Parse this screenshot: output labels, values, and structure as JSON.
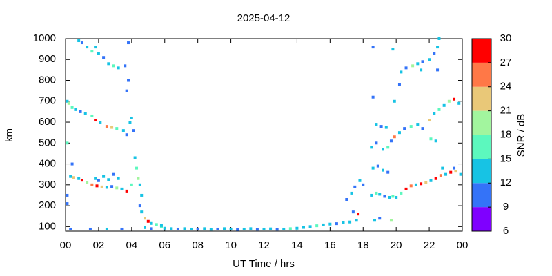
{
  "chart_data": {
    "type": "scatter",
    "title": "2025-04-12",
    "xlabel": "UT Time / hrs",
    "ylabel": "km",
    "xlim": [
      0,
      24
    ],
    "xticks": [
      {
        "value": 0,
        "label": "00"
      },
      {
        "value": 2,
        "label": "02"
      },
      {
        "value": 4,
        "label": "04"
      },
      {
        "value": 6,
        "label": "06"
      },
      {
        "value": 8,
        "label": "08"
      },
      10,
      12,
      14,
      16,
      18,
      20,
      22,
      {
        "value": 24,
        "label": "00"
      }
    ],
    "ylim": [
      78,
      1000
    ],
    "yticks": [
      100,
      200,
      300,
      400,
      500,
      600,
      700,
      800,
      900,
      1000
    ],
    "colorbar": {
      "label": "SNR / dB",
      "lim": [
        6,
        30
      ],
      "ticks": [
        6,
        9,
        12,
        15,
        18,
        21,
        24,
        27,
        30
      ],
      "colors": [
        "#7f00ff",
        "#3473f8",
        "#17c3e4",
        "#5cf8be",
        "#a2f59e",
        "#e9c878",
        "#ff7847",
        "#ff0000"
      ]
    },
    "series": [
      {
        "x": [
          5.8,
          6.0,
          6.4,
          6.8,
          7.2,
          7.6,
          8.0,
          8.4,
          8.8,
          9.2,
          9.6,
          10.0,
          10.4,
          10.8,
          11.2,
          11.6,
          12.0,
          12.4,
          12.8,
          13.2,
          13.6,
          14.0,
          14.4,
          14.8,
          15.2,
          15.6,
          16.0,
          16.4,
          16.8,
          17.2,
          0.3,
          1.5,
          2.5,
          3.4,
          4.8,
          5.2,
          0.3,
          0.5,
          0.8,
          1.0,
          1.3,
          1.6,
          1.9,
          2.2,
          2.5,
          2.8,
          3.1,
          3.4,
          3.7,
          1.8,
          2.0,
          2.3,
          2.6,
          2.9,
          3.2,
          0.1,
          0.1,
          0.4,
          0.1,
          0.2,
          0.4,
          0.6,
          0.9,
          1.2,
          1.6,
          1.8,
          2.1,
          2.5,
          2.8,
          3.1,
          3.5,
          3.7,
          3.9,
          0.1,
          0.8,
          1.0,
          1.3,
          1.6,
          2.0,
          2.3,
          2.6,
          2.9,
          3.2,
          3.6,
          3.8,
          1.8,
          3.8,
          3.7,
          4.0,
          4.1,
          4.2,
          4.3,
          4.4,
          4.5,
          4.6,
          4.5,
          4.6,
          4.8,
          5.0,
          5.2,
          5.5,
          5.8,
          4.0,
          17.0,
          17.3,
          17.5,
          17.7,
          17.6,
          17.4,
          17.8,
          18.0,
          18.5,
          18.8,
          19.0,
          19.3,
          19.6,
          19.8,
          18.6,
          18.9,
          19.2,
          19.5,
          18.5,
          18.8,
          19.2,
          19.5,
          19.7,
          19.9,
          18.8,
          19.1,
          19.4,
          18.6,
          19.9,
          18.6,
          19.8,
          18.7,
          19.0,
          19.7,
          20.0,
          20.3,
          20.6,
          20.9,
          21.2,
          21.5,
          21.8,
          22.1,
          22.4,
          22.7,
          23.0,
          23.3,
          23.6,
          23.9,
          23.5,
          22.8,
          20.2,
          20.5,
          20.9,
          21.3,
          21.6,
          22.0,
          22.3,
          22.6,
          22.9,
          23.2,
          23.5,
          23.8,
          22.1,
          22.4,
          20.2,
          20.3,
          20.6,
          21.0,
          21.3,
          21.6,
          22.0,
          22.3,
          22.5,
          22.6,
          21.5,
          22.5
        ],
        "values": [
          100,
          92,
          90,
          88,
          90,
          88,
          88,
          90,
          87,
          88,
          90,
          88,
          86,
          88,
          90,
          87,
          88,
          89,
          87,
          88,
          90,
          92,
          96,
          100,
          104,
          108,
          112,
          114,
          118,
          122,
          88,
          88,
          88,
          88,
          95,
          90,
          340,
          335,
          330,
          322,
          310,
          300,
          295,
          290,
          288,
          292,
          285,
          280,
          270,
          330,
          320,
          340,
          325,
          350,
          330,
          250,
          210,
          400,
          700,
          690,
          670,
          660,
          650,
          640,
          630,
          610,
          600,
          580,
          575,
          570,
          560,
          540,
          600,
          500,
          990,
          980,
          960,
          940,
          930,
          910,
          880,
          870,
          860,
          870,
          980,
          960,
          800,
          750,
          620,
          560,
          430,
          380,
          330,
          300,
          250,
          200,
          170,
          140,
          125,
          115,
          110,
          105,
          300,
          230,
          260,
          290,
          160,
          130,
          170,
          320,
          300,
          250,
          260,
          255,
          245,
          240,
          245,
          380,
          390,
          370,
          360,
          480,
          500,
          470,
          480,
          510,
          530,
          590,
          580,
          575,
          720,
          700,
          960,
          950,
          130,
          140,
          130,
          240,
          260,
          280,
          295,
          300,
          305,
          310,
          320,
          330,
          345,
          350,
          360,
          365,
          350,
          380,
          380,
          550,
          570,
          580,
          590,
          570,
          610,
          640,
          660,
          680,
          700,
          710,
          690,
          520,
          510,
          780,
          840,
          860,
          870,
          880,
          890,
          900,
          930,
          960,
          1000,
          850,
          850
        ],
        "snr": [
          15,
          12,
          12,
          9,
          12,
          12,
          9,
          12,
          12,
          9,
          12,
          12,
          9,
          12,
          12,
          9,
          12,
          12,
          9,
          12,
          15,
          12,
          12,
          12,
          15,
          12,
          12,
          9,
          12,
          12,
          9,
          9,
          12,
          9,
          12,
          9,
          12,
          21,
          12,
          27,
          18,
          24,
          27,
          21,
          12,
          9,
          18,
          12,
          27,
          12,
          9,
          12,
          12,
          9,
          12,
          9,
          9,
          9,
          12,
          18,
          15,
          12,
          9,
          12,
          15,
          27,
          12,
          24,
          21,
          15,
          12,
          9,
          12,
          15,
          12,
          9,
          12,
          15,
          12,
          9,
          12,
          15,
          12,
          9,
          9,
          12,
          9,
          9,
          12,
          9,
          12,
          15,
          18,
          12,
          12,
          9,
          12,
          21,
          27,
          12,
          15,
          12,
          15,
          9,
          12,
          9,
          27,
          12,
          9,
          12,
          9,
          12,
          15,
          12,
          9,
          12,
          15,
          12,
          9,
          12,
          9,
          12,
          9,
          12,
          15,
          9,
          24,
          12,
          9,
          12,
          9,
          12,
          9,
          12,
          12,
          9,
          18,
          12,
          15,
          27,
          24,
          12,
          27,
          21,
          12,
          27,
          24,
          12,
          27,
          21,
          12,
          9,
          12,
          12,
          9,
          15,
          12,
          9,
          21,
          12,
          15,
          12,
          18,
          27,
          12,
          15,
          12,
          9,
          12,
          9,
          18,
          12,
          9,
          12,
          9,
          12,
          12,
          12,
          9
        ]
      }
    ]
  }
}
